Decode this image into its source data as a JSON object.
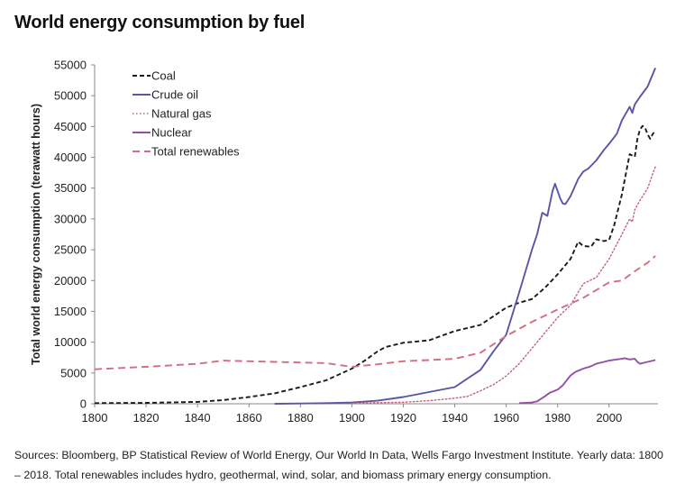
{
  "title": "World energy consumption by fuel",
  "source_note": "Sources: Bloomberg, BP Statistical Review of World Energy, Our World In Data, Wells Fargo Investment Institute. Yearly data: 1800 – 2018. Total renewables includes hydro, geothermal, wind, solar, and biomass primary energy consumption.",
  "chart_data": {
    "type": "line",
    "title": "World energy consumption by fuel",
    "xlabel": "",
    "ylabel": "Total world energy consumption (terawatt hours)",
    "xlim": [
      1800,
      2019
    ],
    "ylim": [
      0,
      55000
    ],
    "xticks": [
      1800,
      1820,
      1840,
      1860,
      1880,
      1900,
      1920,
      1940,
      1960,
      1980,
      2000
    ],
    "yticks": [
      0,
      5000,
      10000,
      15000,
      20000,
      25000,
      30000,
      35000,
      40000,
      45000,
      50000,
      55000
    ],
    "legend_position": "top-left",
    "grid": false,
    "series": [
      {
        "name": "Coal",
        "color": "#1a1a1a",
        "style": "dashed",
        "x": [
          1800,
          1820,
          1840,
          1850,
          1860,
          1870,
          1880,
          1890,
          1900,
          1905,
          1910,
          1913,
          1920,
          1930,
          1940,
          1950,
          1955,
          1960,
          1965,
          1970,
          1975,
          1980,
          1985,
          1988,
          1990,
          1993,
          1995,
          1998,
          2000,
          2002,
          2005,
          2008,
          2010,
          2011,
          2012,
          2013,
          2014,
          2015,
          2016,
          2017,
          2018
        ],
        "y": [
          100,
          150,
          300,
          600,
          1100,
          1700,
          2700,
          3800,
          5700,
          7000,
          8500,
          9200,
          9900,
          10300,
          11800,
          12800,
          14200,
          15600,
          16400,
          17000,
          18800,
          21000,
          23500,
          26300,
          25600,
          25500,
          26700,
          26400,
          26600,
          29000,
          34000,
          40500,
          40100,
          43000,
          44500,
          45100,
          44800,
          43700,
          43000,
          43800,
          44300
        ]
      },
      {
        "name": "Crude oil",
        "color": "#5b55a6",
        "style": "solid",
        "x": [
          1870,
          1880,
          1890,
          1900,
          1910,
          1920,
          1930,
          1940,
          1950,
          1955,
          1960,
          1965,
          1970,
          1972,
          1974,
          1976,
          1978,
          1979,
          1980,
          1981,
          1982,
          1983,
          1985,
          1988,
          1990,
          1992,
          1995,
          1998,
          2000,
          2003,
          2005,
          2008,
          2009,
          2010,
          2012,
          2015,
          2018
        ],
        "y": [
          0,
          50,
          100,
          200,
          500,
          1100,
          1900,
          2700,
          5500,
          8500,
          11200,
          18000,
          25000,
          27500,
          31000,
          30500,
          34500,
          35700,
          34500,
          33300,
          32500,
          32400,
          33700,
          36500,
          37700,
          38200,
          39500,
          41200,
          42200,
          43800,
          46000,
          48200,
          47200,
          48600,
          49800,
          51500,
          54500
        ]
      },
      {
        "name": "Natural gas",
        "color": "#c4607c",
        "style": "dotted",
        "x": [
          1900,
          1920,
          1930,
          1940,
          1945,
          1950,
          1955,
          1960,
          1965,
          1970,
          1975,
          1980,
          1985,
          1990,
          1995,
          2000,
          2005,
          2008,
          2009,
          2010,
          2012,
          2015,
          2018
        ],
        "y": [
          100,
          250,
          500,
          900,
          1200,
          2100,
          3100,
          4500,
          6500,
          9000,
          11500,
          14000,
          16000,
          19500,
          20500,
          23500,
          27500,
          30000,
          29500,
          31500,
          33000,
          35000,
          38500
        ]
      },
      {
        "name": "Nuclear",
        "color": "#9550a6",
        "style": "solid",
        "x": [
          1965,
          1970,
          1972,
          1975,
          1977,
          1980,
          1982,
          1985,
          1987,
          1990,
          1993,
          1995,
          1998,
          2000,
          2003,
          2005,
          2006,
          2008,
          2010,
          2011,
          2012,
          2015,
          2018
        ],
        "y": [
          100,
          200,
          400,
          1200,
          1800,
          2300,
          3000,
          4600,
          5200,
          5700,
          6100,
          6500,
          6800,
          7000,
          7200,
          7300,
          7400,
          7200,
          7300,
          6800,
          6500,
          6800,
          7100
        ]
      },
      {
        "name": "Total renewables",
        "color": "#d46d7e",
        "style": "dashed",
        "x": [
          1800,
          1820,
          1840,
          1850,
          1860,
          1870,
          1880,
          1890,
          1900,
          1910,
          1920,
          1930,
          1940,
          1950,
          1960,
          1970,
          1980,
          1990,
          2000,
          2005,
          2010,
          2015,
          2018
        ],
        "y": [
          5600,
          6000,
          6500,
          7000,
          6900,
          6800,
          6700,
          6600,
          6000,
          6400,
          6900,
          7100,
          7300,
          8300,
          11000,
          13300,
          15300,
          17200,
          19700,
          20000,
          21500,
          22900,
          24000
        ]
      }
    ]
  }
}
